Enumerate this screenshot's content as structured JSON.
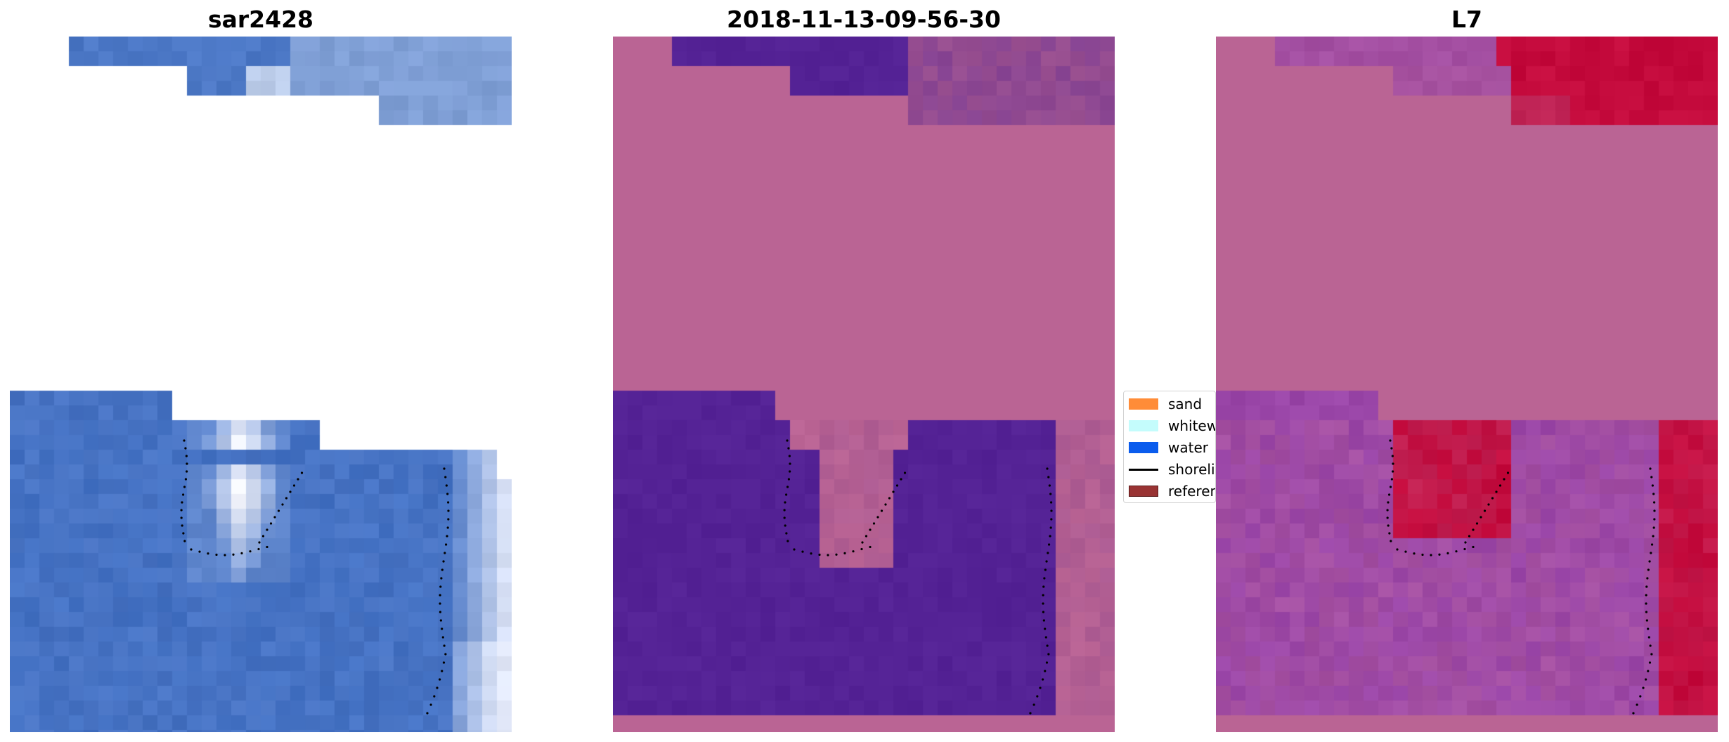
{
  "panels": [
    {
      "title": "sar2428",
      "kind": "rgb"
    },
    {
      "title": "2018-11-13-09-56-30",
      "kind": "classified"
    },
    {
      "title": "L7",
      "kind": "mndwi"
    }
  ],
  "legend": {
    "items": [
      {
        "label": "sand",
        "color": "#ff8c38",
        "icon": "patch"
      },
      {
        "label": "whitewater",
        "color": "#c4fcfc",
        "icon": "patch"
      },
      {
        "label": "water",
        "color": "#0a5ced",
        "icon": "patch"
      },
      {
        "label": "shoreline",
        "color": "#000000",
        "icon": "line"
      },
      {
        "label": "reference",
        "color": "#993333",
        "icon": "patch"
      }
    ]
  },
  "colors": {
    "rgb_water": "#4472c4",
    "rgb_bright": "#f4f6ff",
    "class_background": "#ba6494",
    "class_water": "#542295",
    "class_edge": "#9a5090",
    "mndwi_base": "#9a46a8",
    "mndwi_high": "#c40a3c",
    "shoreline": "#000000"
  }
}
